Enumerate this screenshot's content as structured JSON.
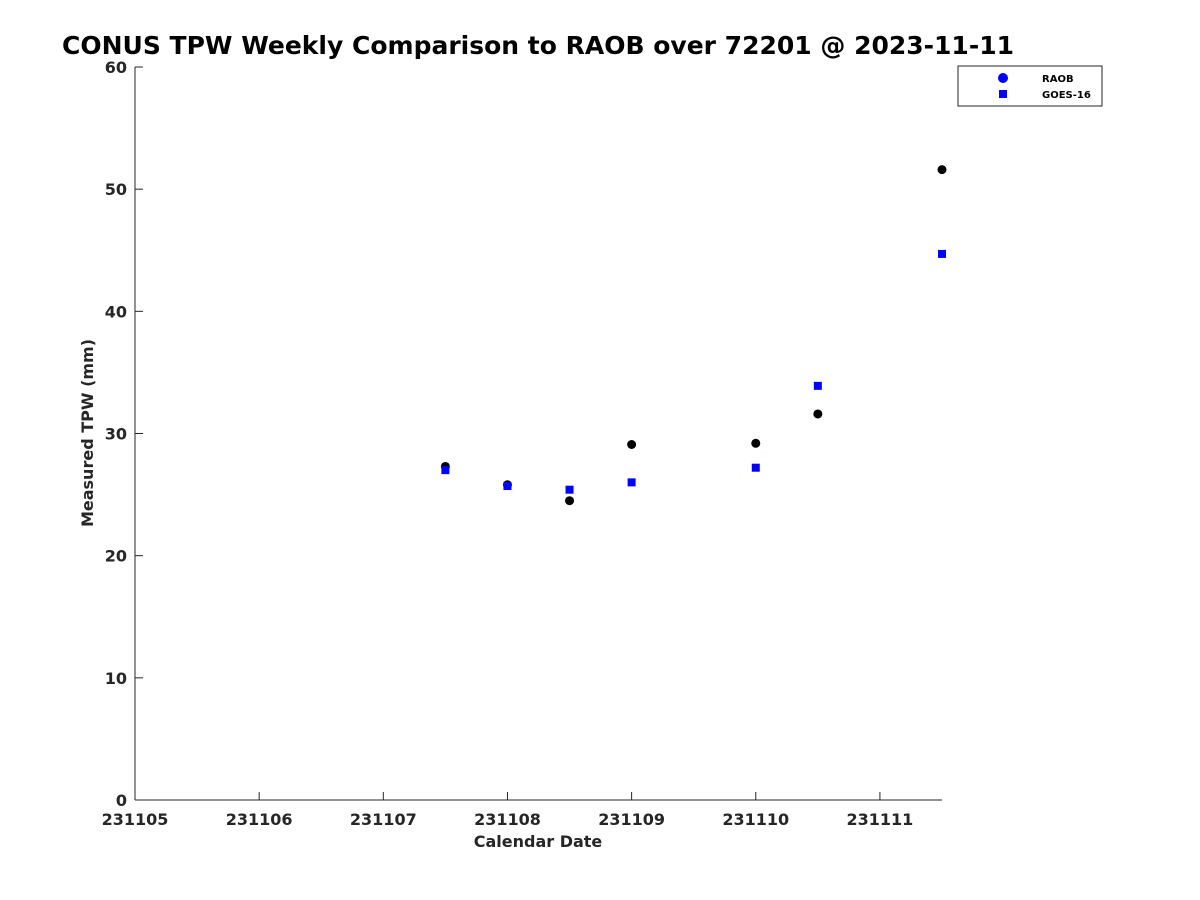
{
  "chart_data": {
    "type": "scatter",
    "title": "CONUS TPW Weekly Comparison to RAOB over 72201 @ 2023-11-11",
    "xlabel": "Calendar Date",
    "ylabel": "Measured TPW (mm)",
    "xlim": [
      0,
      6.5
    ],
    "ylim": [
      0,
      60
    ],
    "x_ticks": [
      0,
      1,
      2,
      3,
      4,
      5,
      6
    ],
    "x_tick_labels": [
      "231105",
      "231106",
      "231107",
      "231108",
      "231109",
      "231110",
      "231111"
    ],
    "y_ticks": [
      0,
      10,
      20,
      30,
      40,
      50,
      60
    ],
    "y_tick_labels": [
      "0",
      "10",
      "20",
      "30",
      "40",
      "50",
      "60"
    ],
    "grid": false,
    "legend_position": "top-right",
    "series": [
      {
        "name": "RAOB",
        "marker": "circle",
        "color": "#000000",
        "legend_color": "#0000ff",
        "x": [
          2.5,
          3.0,
          3.5,
          4.0,
          5.0,
          5.5,
          6.5
        ],
        "y": [
          27.3,
          25.8,
          24.5,
          29.1,
          29.2,
          31.6,
          51.6
        ]
      },
      {
        "name": "GOES-16",
        "marker": "square",
        "color": "#0000ff",
        "legend_color": "#0000ff",
        "x": [
          2.5,
          3.0,
          3.5,
          4.0,
          5.0,
          5.5,
          6.5
        ],
        "y": [
          27.0,
          25.7,
          25.4,
          26.0,
          27.2,
          33.9,
          44.7
        ]
      }
    ]
  }
}
